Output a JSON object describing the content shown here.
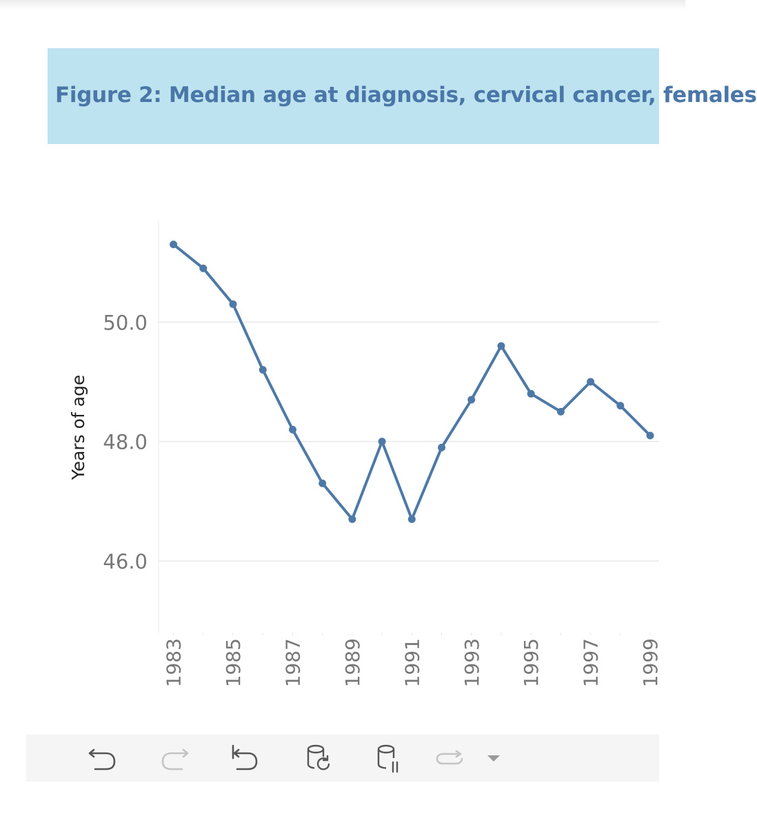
{
  "title": "Figure 2: Median age at diagnosis, cervical cancer, females",
  "colors": {
    "banner_bg": "#bde3f0",
    "title_text": "#4a77a8",
    "series_line": "#4e79a7",
    "gridline": "#e8e8e8",
    "tick_text": "#777777",
    "axis_title_text": "#222222",
    "toolbar_bg": "#f5f5f5",
    "icon_active": "#555555",
    "icon_disabled": "#c4c4c4"
  },
  "chart_data": {
    "type": "line",
    "title": "Figure 2: Median age at diagnosis, cervical cancer, females",
    "ylabel": "Years of age",
    "xlabel": "",
    "x": [
      1983,
      1984,
      1985,
      1986,
      1987,
      1988,
      1989,
      1990,
      1991,
      1992,
      1993,
      1994,
      1995,
      1996,
      1997,
      1998,
      1999
    ],
    "x_tick_labels": [
      "1983",
      "1985",
      "1987",
      "1989",
      "1991",
      "1993",
      "1995",
      "1997",
      "1999"
    ],
    "y_ticks": [
      46.0,
      48.0,
      50.0
    ],
    "y_tick_labels": [
      "46.0",
      "48.0",
      "50.0"
    ],
    "ylim": [
      44.8,
      51.7
    ],
    "xlim": [
      1982.5,
      1999.3
    ],
    "grid": true,
    "series": [
      {
        "values": [
          51.3,
          50.9,
          50.3,
          49.2,
          48.2,
          47.3,
          46.7,
          48.0,
          46.7,
          47.9,
          48.7,
          49.6,
          48.8,
          48.5,
          49.0,
          48.6,
          48.1
        ]
      }
    ]
  },
  "toolbar": {
    "buttons": [
      {
        "id": "undo",
        "icon": "undo-icon",
        "enabled": true
      },
      {
        "id": "redo",
        "icon": "redo-icon",
        "enabled": false
      },
      {
        "id": "revert",
        "icon": "revert-icon",
        "enabled": true
      },
      {
        "id": "refresh-data",
        "icon": "database-refresh-icon",
        "enabled": true
      },
      {
        "id": "pause-updates",
        "icon": "database-pause-icon",
        "enabled": true
      },
      {
        "id": "replay-animation",
        "icon": "replay-icon",
        "enabled": false
      },
      {
        "id": "more-options",
        "icon": "dropdown-caret-icon",
        "enabled": true
      }
    ]
  }
}
